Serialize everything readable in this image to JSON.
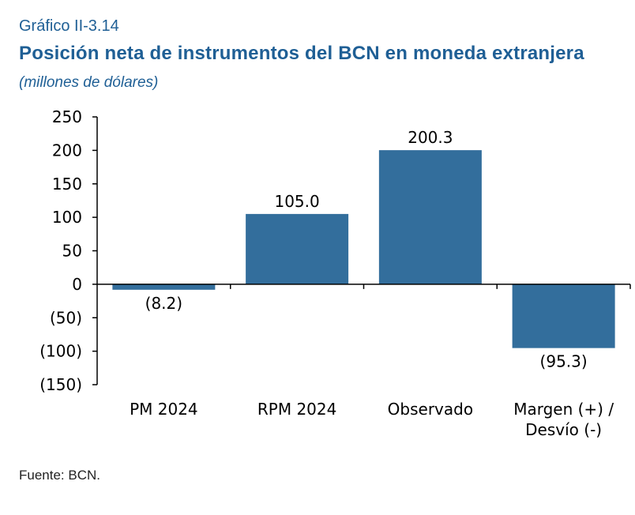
{
  "header": {
    "kicker": "Gráfico II-3.14",
    "title": "Posición neta de instrumentos del BCN en moneda extranjera",
    "subtitle": "(millones de dólares)"
  },
  "footer": {
    "source": "Fuente: BCN."
  },
  "chart_data": {
    "type": "bar",
    "categories": [
      [
        "PM 2024"
      ],
      [
        "RPM 2024"
      ],
      [
        "Observado"
      ],
      [
        "Margen (+) /",
        "Desvío (-)"
      ]
    ],
    "values": [
      -8.2,
      105.0,
      200.3,
      -95.3
    ],
    "value_labels": [
      "(8.2)",
      "105.0",
      "200.3",
      "(95.3)"
    ],
    "ylim": [
      -150,
      250
    ],
    "yticks": [
      250,
      200,
      150,
      100,
      50,
      0,
      -50,
      -100,
      -150
    ],
    "ytick_labels": [
      "250",
      "200",
      "150",
      "100",
      "50",
      "0",
      "(50)",
      "(100)",
      "(150)"
    ],
    "bar_color": "#336e9c",
    "grid": false
  }
}
